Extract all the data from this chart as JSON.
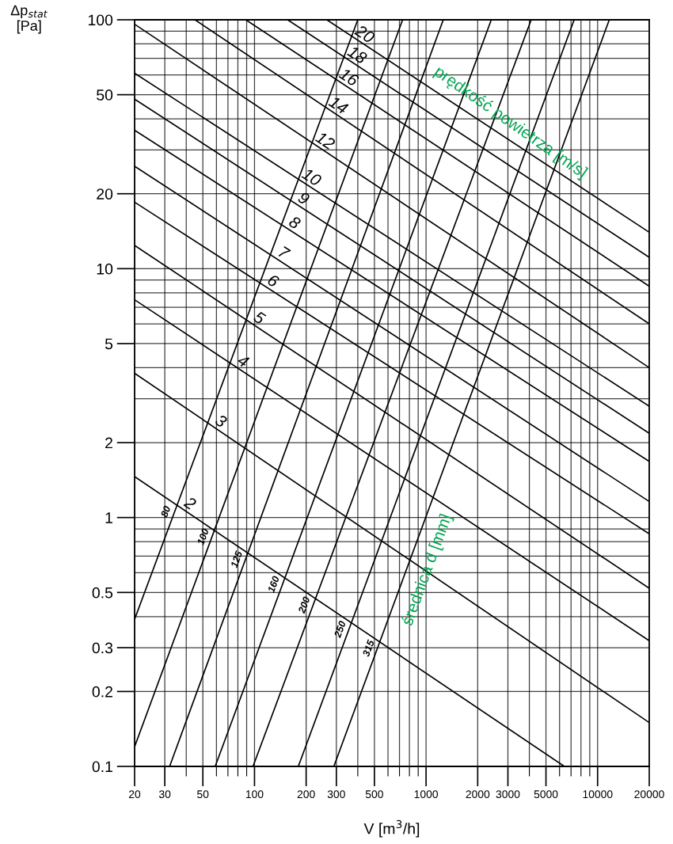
{
  "chart_data": {
    "type": "line",
    "xlabel": "V [m$^{3}$/h]",
    "ylabel": "Δp$_{stat}$\n[Pa]",
    "log": "xy",
    "grid": true,
    "xlim": [
      20,
      20000
    ],
    "ylim": [
      0.1,
      100
    ],
    "xticks": [
      20,
      30,
      50,
      100,
      200,
      300,
      500,
      1000,
      2000,
      3000,
      5000,
      10000,
      20000
    ],
    "yticks": [
      0.1,
      0.2,
      0.3,
      0.5,
      1,
      2,
      5,
      10,
      20,
      50,
      100
    ],
    "series": [
      {
        "name": "80",
        "color": "#000000",
        "x": [
          20,
          400
        ],
        "values": [
          0.39,
          100
        ]
      },
      {
        "name": "100",
        "color": "#000000",
        "x": [
          20,
          730
        ],
        "values": [
          0.12,
          100
        ]
      },
      {
        "name": "125",
        "color": "#000000",
        "x": [
          32,
          1260
        ],
        "values": [
          0.1,
          100
        ]
      },
      {
        "name": "160",
        "color": "#000000",
        "x": [
          59,
          2400
        ],
        "values": [
          0.1,
          100
        ]
      },
      {
        "name": "200",
        "color": "#000000",
        "x": [
          98,
          4100
        ],
        "values": [
          0.1,
          100
        ]
      },
      {
        "name": "250",
        "color": "#000000",
        "x": [
          180,
          7300
        ],
        "values": [
          0.1,
          100
        ]
      },
      {
        "name": "315",
        "color": "#000000",
        "x": [
          290,
          11700
        ],
        "values": [
          0.1,
          100
        ]
      },
      {
        "name": "2",
        "color": "#000000",
        "x": [
          20,
          6400
        ],
        "values": [
          1.46,
          0.1
        ]
      },
      {
        "name": "3",
        "color": "#000000",
        "x": [
          20,
          20000
        ],
        "values": [
          3.8,
          0.15
        ]
      },
      {
        "name": "4",
        "color": "#000000",
        "x": [
          20,
          20000
        ],
        "values": [
          7.5,
          0.32
        ]
      },
      {
        "name": "5",
        "color": "#000000",
        "x": [
          20,
          20000
        ],
        "values": [
          12.4,
          0.52
        ]
      },
      {
        "name": "6",
        "color": "#000000",
        "x": [
          20,
          20000
        ],
        "values": [
          18.5,
          0.86
        ]
      },
      {
        "name": "7",
        "color": "#000000",
        "x": [
          20,
          20000
        ],
        "values": [
          25.8,
          1.16
        ]
      },
      {
        "name": "8",
        "color": "#000000",
        "x": [
          20,
          20000
        ],
        "values": [
          36,
          1.68
        ]
      },
      {
        "name": "9",
        "color": "#000000",
        "x": [
          20,
          20000
        ],
        "values": [
          48,
          2.18
        ]
      },
      {
        "name": "10",
        "color": "#000000",
        "x": [
          20,
          20000
        ],
        "values": [
          61,
          2.8
        ]
      },
      {
        "name": "12",
        "color": "#000000",
        "x": [
          20,
          20000
        ],
        "values": [
          96,
          4.0
        ]
      },
      {
        "name": "14",
        "color": "#000000",
        "x": [
          45,
          20000
        ],
        "values": [
          100,
          6.0
        ]
      },
      {
        "name": "16",
        "color": "#000000",
        "x": [
          89,
          20000
        ],
        "values": [
          100,
          8.5
        ]
      },
      {
        "name": "18",
        "color": "#000000",
        "x": [
          156,
          20000
        ],
        "values": [
          100,
          11.1
        ]
      },
      {
        "name": "20",
        "color": "#000000",
        "x": [
          264,
          20000
        ],
        "values": [
          100,
          14.0
        ]
      }
    ],
    "annotations": [
      "prędkość powietrza [m/s]",
      "średnica d [mm]"
    ]
  }
}
